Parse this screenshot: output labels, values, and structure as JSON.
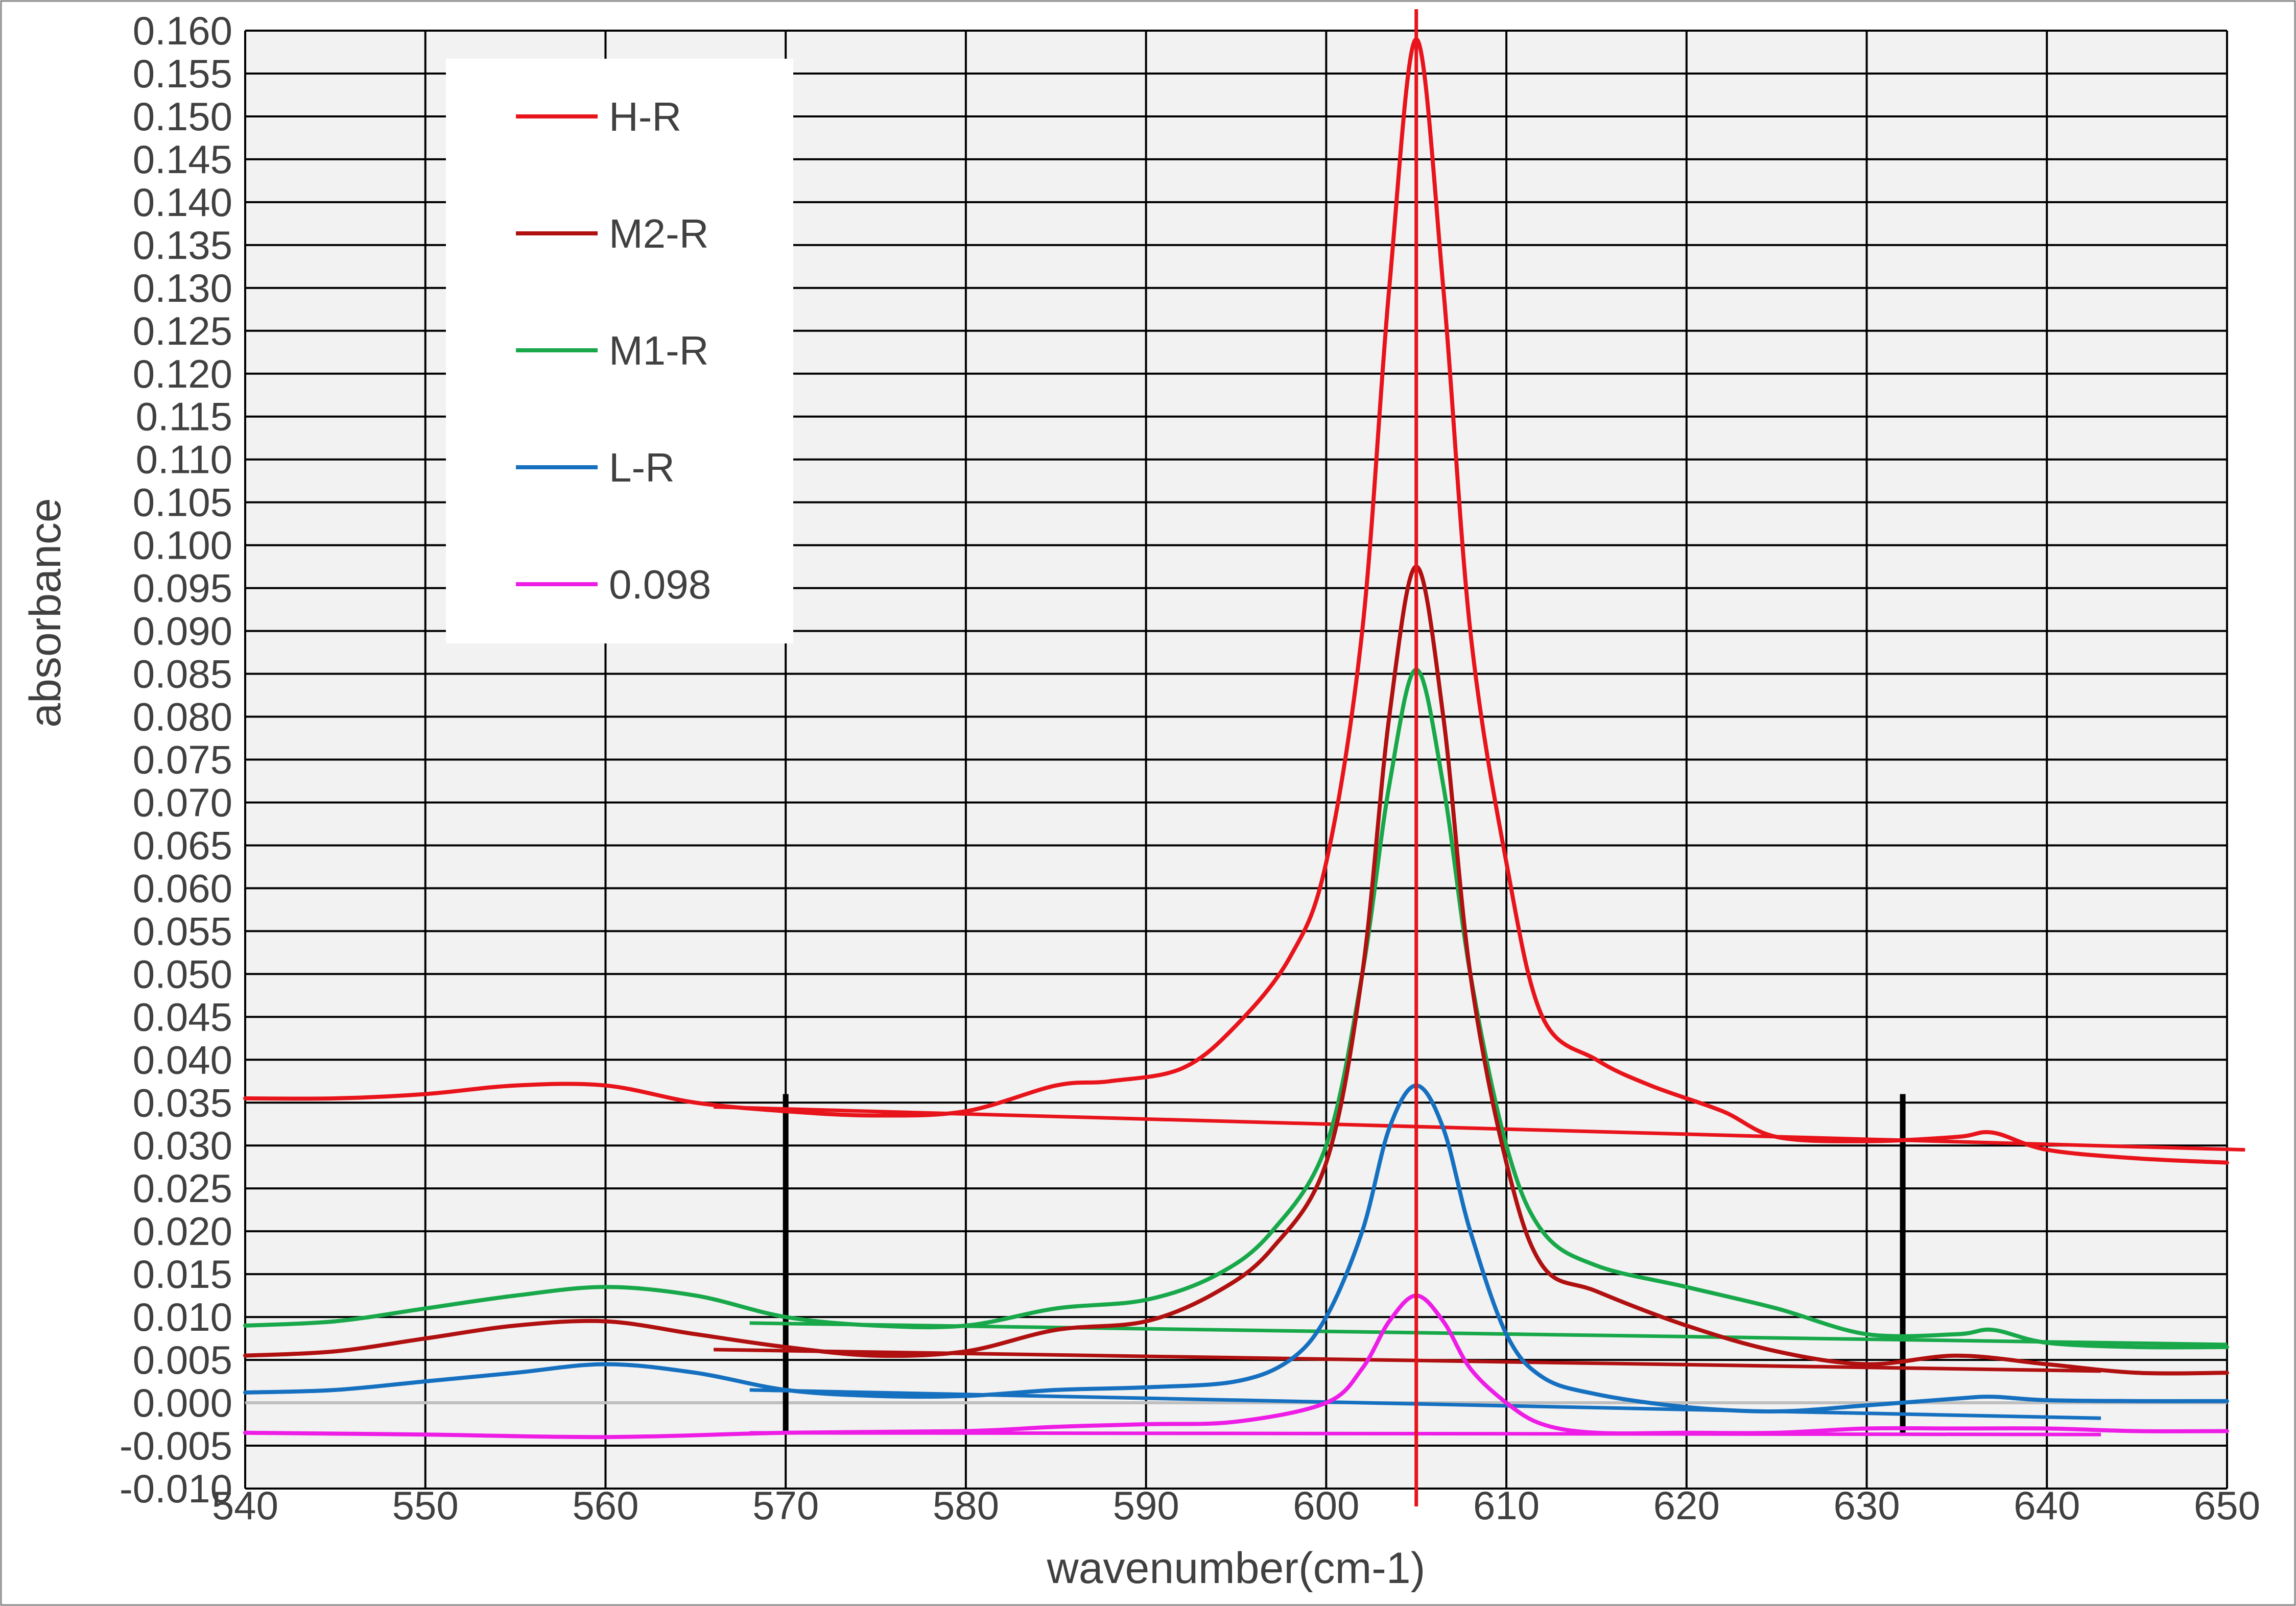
{
  "chart_data": {
    "type": "line",
    "title": "",
    "xlabel": "wavenumber(cm-1)",
    "ylabel": "absorbance",
    "xlim": [
      540,
      650
    ],
    "ylim": [
      -0.01,
      0.16
    ],
    "xticks": [
      "540",
      "550",
      "560",
      "570",
      "580",
      "590",
      "600",
      "610",
      "620",
      "630",
      "640",
      "650"
    ],
    "yticks": [
      "0.160",
      "0.155",
      "0.150",
      "0.145",
      "0.140",
      "0.135",
      "0.130",
      "0.125",
      "0.120",
      "0.115",
      "0.110",
      "0.105",
      "0.100",
      "0.095",
      "0.090",
      "0.085",
      "0.080",
      "0.075",
      "0.070",
      "0.065",
      "0.060",
      "0.055",
      "0.050",
      "0.045",
      "0.040",
      "0.035",
      "0.030",
      "0.025",
      "0.020",
      "0.015",
      "0.010",
      "0.005",
      "0.000",
      "-0.005",
      "-0.010"
    ],
    "grid": true,
    "legend_position": "top-left",
    "series": [
      {
        "name": "H-R",
        "color": "#e8141b",
        "x": [
          540,
          545,
          550,
          555,
          560,
          565,
          570,
          575,
          580,
          585,
          588,
          592,
          595,
          598,
          600,
          602,
          603.5,
          605,
          606.5,
          608,
          610,
          612,
          615,
          618,
          622,
          625,
          630,
          635,
          637,
          640,
          645,
          650
        ],
        "y": [
          0.0355,
          0.0355,
          0.036,
          0.037,
          0.037,
          0.035,
          0.034,
          0.0335,
          0.034,
          0.037,
          0.0375,
          0.039,
          0.044,
          0.052,
          0.063,
          0.09,
          0.13,
          0.159,
          0.13,
          0.09,
          0.063,
          0.045,
          0.04,
          0.037,
          0.034,
          0.031,
          0.0305,
          0.031,
          0.0315,
          0.0295,
          0.0285,
          0.028
        ]
      },
      {
        "name": "M2-R",
        "color": "#b01010",
        "x": [
          540,
          545,
          550,
          555,
          560,
          565,
          570,
          575,
          580,
          585,
          590,
          594,
          597,
          600,
          602,
          603.5,
          605,
          606.5,
          608,
          610,
          612,
          615,
          620,
          625,
          630,
          635,
          640,
          645,
          650
        ],
        "y": [
          0.0055,
          0.006,
          0.0075,
          0.009,
          0.0095,
          0.008,
          0.0065,
          0.0055,
          0.006,
          0.0085,
          0.0095,
          0.013,
          0.018,
          0.028,
          0.05,
          0.08,
          0.0975,
          0.08,
          0.05,
          0.028,
          0.016,
          0.013,
          0.009,
          0.006,
          0.0045,
          0.0055,
          0.0045,
          0.0035,
          0.0035
        ]
      },
      {
        "name": "M1-R",
        "color": "#18a84a",
        "x": [
          540,
          545,
          550,
          555,
          560,
          565,
          570,
          575,
          580,
          585,
          590,
          594,
          597,
          600,
          602,
          603.5,
          605,
          606.5,
          608,
          610,
          612,
          615,
          620,
          625,
          630,
          635,
          637,
          640,
          645,
          650
        ],
        "y": [
          0.009,
          0.0095,
          0.011,
          0.0125,
          0.0135,
          0.0125,
          0.01,
          0.009,
          0.009,
          0.011,
          0.012,
          0.015,
          0.02,
          0.03,
          0.05,
          0.072,
          0.0855,
          0.072,
          0.05,
          0.03,
          0.02,
          0.016,
          0.0135,
          0.011,
          0.008,
          0.008,
          0.0085,
          0.007,
          0.0065,
          0.0065
        ]
      },
      {
        "name": "L-R",
        "color": "#1670c0",
        "x": [
          540,
          545,
          550,
          555,
          560,
          565,
          570,
          575,
          580,
          585,
          590,
          595,
          598,
          600,
          602,
          603.5,
          605,
          606.5,
          608,
          610,
          612,
          615,
          620,
          625,
          630,
          635,
          637,
          640,
          645,
          650
        ],
        "y": [
          0.0012,
          0.0015,
          0.0025,
          0.0035,
          0.0045,
          0.0035,
          0.0015,
          0.0008,
          0.0008,
          0.0015,
          0.0018,
          0.0025,
          0.005,
          0.01,
          0.02,
          0.032,
          0.037,
          0.032,
          0.02,
          0.008,
          0.003,
          0.001,
          -0.0005,
          -0.001,
          -0.0003,
          0.0005,
          0.0007,
          0.0003,
          0.0002,
          0.0002
        ]
      },
      {
        "name": "0.098",
        "color": "#ee1de6",
        "x": [
          540,
          550,
          560,
          570,
          580,
          585,
          590,
          595,
          600,
          602,
          603.5,
          605,
          606.5,
          608,
          610,
          612,
          615,
          620,
          625,
          630,
          635,
          640,
          645,
          650
        ],
        "y": [
          -0.0035,
          -0.0037,
          -0.004,
          -0.0035,
          -0.0033,
          -0.0028,
          -0.0025,
          -0.0022,
          0.0,
          0.004,
          0.0095,
          0.0125,
          0.0095,
          0.004,
          0.0,
          -0.0025,
          -0.0035,
          -0.0035,
          -0.0035,
          -0.003,
          -0.003,
          -0.003,
          -0.0033,
          -0.0033
        ]
      }
    ],
    "baselines": [
      {
        "series": "H-R",
        "color": "#e8141b",
        "x": [
          566,
          651
        ],
        "y": [
          0.0345,
          0.0295
        ]
      },
      {
        "series": "M2-R",
        "color": "#b01010",
        "x": [
          566,
          643
        ],
        "y": [
          0.0062,
          0.0037
        ]
      },
      {
        "series": "M1-R",
        "color": "#18a84a",
        "x": [
          568,
          650
        ],
        "y": [
          0.0093,
          0.0068
        ]
      },
      {
        "series": "L-R",
        "color": "#1670c0",
        "x": [
          568,
          643
        ],
        "y": [
          0.0015,
          -0.0018
        ]
      },
      {
        "series": "0.098",
        "color": "#ee1de6",
        "x": [
          568,
          643
        ],
        "y": [
          -0.0035,
          -0.0037
        ]
      }
    ],
    "annotations": {
      "peak_line": {
        "x": 605,
        "color": "#e8141b"
      },
      "integration_bounds": [
        {
          "x": 570,
          "y": [
            -0.0035,
            0.036
          ]
        },
        {
          "x": 632,
          "y": [
            -0.0035,
            0.036
          ]
        }
      ],
      "zero_line": {
        "y": 0.0,
        "color": "#bfbfbf"
      }
    }
  }
}
